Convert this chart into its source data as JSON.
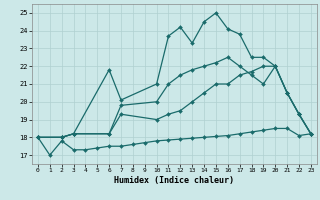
{
  "xlabel": "Humidex (Indice chaleur)",
  "xlim": [
    -0.5,
    23.5
  ],
  "ylim": [
    16.5,
    25.5
  ],
  "xticks": [
    0,
    1,
    2,
    3,
    4,
    5,
    6,
    7,
    8,
    9,
    10,
    11,
    12,
    13,
    14,
    15,
    16,
    17,
    18,
    19,
    20,
    21,
    22,
    23
  ],
  "yticks": [
    17,
    18,
    19,
    20,
    21,
    22,
    23,
    24,
    25
  ],
  "background_color": "#cce8e8",
  "grid_color": "#b0d0d0",
  "line_color": "#1a6b6b",
  "line1_x": [
    0,
    1,
    2,
    3,
    4,
    5,
    6,
    7,
    8,
    9,
    10,
    11,
    12,
    13,
    14,
    15,
    16,
    17,
    18,
    19,
    20,
    21,
    22,
    23
  ],
  "line1_y": [
    18.0,
    17.0,
    17.8,
    17.3,
    17.3,
    17.4,
    17.5,
    17.5,
    17.6,
    17.7,
    17.8,
    17.85,
    17.9,
    17.95,
    18.0,
    18.05,
    18.1,
    18.2,
    18.3,
    18.4,
    18.5,
    18.5,
    18.1,
    18.2
  ],
  "line2_x": [
    0,
    2,
    3,
    6,
    7,
    10,
    11,
    12,
    13,
    14,
    15,
    16,
    17,
    18,
    19,
    20,
    21,
    22,
    23
  ],
  "line2_y": [
    18.0,
    18.0,
    18.2,
    21.8,
    20.1,
    21.0,
    23.7,
    24.2,
    23.3,
    24.5,
    25.0,
    24.1,
    23.8,
    22.5,
    22.5,
    22.0,
    20.5,
    19.3,
    18.2
  ],
  "line3_x": [
    0,
    2,
    3,
    6,
    7,
    10,
    11,
    12,
    13,
    14,
    15,
    16,
    17,
    18,
    19,
    20,
    21,
    22,
    23
  ],
  "line3_y": [
    18.0,
    18.0,
    18.2,
    18.2,
    19.3,
    19.0,
    19.3,
    19.5,
    20.0,
    20.5,
    21.0,
    21.0,
    21.5,
    21.7,
    22.0,
    22.0,
    20.5,
    19.3,
    18.2
  ],
  "line4_x": [
    0,
    2,
    3,
    6,
    7,
    10,
    11,
    12,
    13,
    14,
    15,
    16,
    17,
    18,
    19,
    20,
    21,
    22,
    23
  ],
  "line4_y": [
    18.0,
    18.0,
    18.2,
    18.2,
    19.8,
    20.0,
    21.0,
    21.5,
    21.8,
    22.0,
    22.2,
    22.5,
    22.0,
    21.5,
    21.0,
    22.0,
    20.5,
    19.3,
    18.2
  ]
}
